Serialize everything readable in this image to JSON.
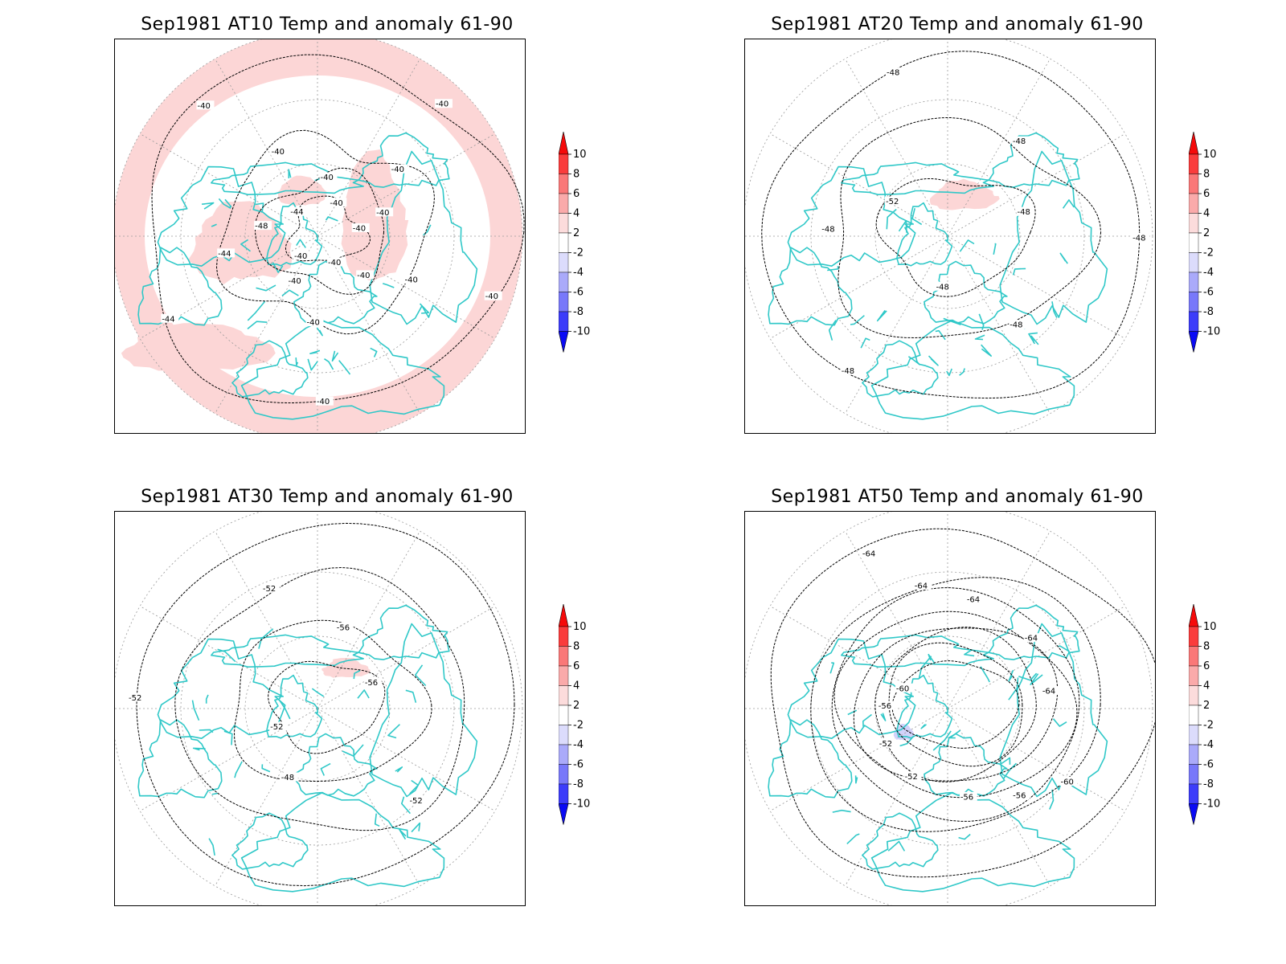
{
  "panels": [
    {
      "id": "at10",
      "title": "Sep1981 AT10 Temp and anomaly 61-90",
      "contour_labels": [
        "-40",
        "-40",
        "-40",
        "-40",
        "-40",
        "-40",
        "-40",
        "-40",
        "-44",
        "-44",
        "-48",
        "-44",
        "-40",
        "-40",
        "-40",
        "-40",
        "-40",
        "-40",
        "-40",
        "-40"
      ],
      "anomaly": "warm-broad"
    },
    {
      "id": "at20",
      "title": "Sep1981 AT20 Temp and anomaly 61-90",
      "contour_labels": [
        "-48",
        "-48",
        "-48",
        "-48",
        "-48",
        "-52",
        "-48",
        "-48",
        "-48"
      ],
      "anomaly": "warm-small"
    },
    {
      "id": "at30",
      "title": "Sep1981 AT30 Temp and anomaly 61-90",
      "contour_labels": [
        "-52",
        "-52",
        "-48",
        "-52",
        "-52",
        "-52",
        "-56",
        "-56"
      ],
      "anomaly": "warm-tiny"
    },
    {
      "id": "at50",
      "title": "Sep1981 AT50 Temp and anomaly 61-90",
      "contour_labels": [
        "-64",
        "-60",
        "-56",
        "-56",
        "-52",
        "-52",
        "-56",
        "-60",
        "-64",
        "-64",
        "-64",
        "-64",
        "-64"
      ],
      "anomaly": "cool-tiny"
    }
  ],
  "colorbar": {
    "labels": [
      "10",
      "8",
      "6",
      "4",
      "2",
      "-2",
      "-4",
      "-6",
      "-8",
      "-10"
    ],
    "colors": [
      "#f50a0a",
      "#fa3c3c",
      "#fa7878",
      "#faaaaa",
      "#fcdcdc",
      "#ffffff",
      "#dcdcfc",
      "#aaaafa",
      "#7878fa",
      "#3c3cfa",
      "#0a0af5"
    ]
  },
  "colors": {
    "coast": "#30c8c8",
    "contour": "#000000",
    "graticule": "#9a9a9a",
    "warm_fill": "#fcd6d6",
    "cool_fill": "#d2d2fa"
  }
}
